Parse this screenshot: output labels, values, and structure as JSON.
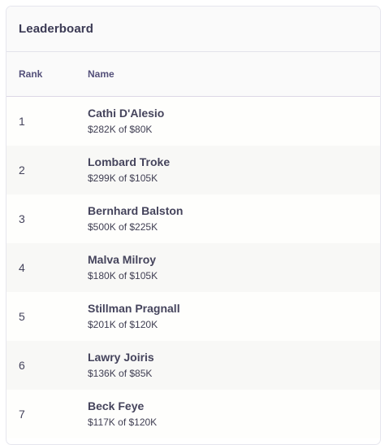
{
  "leaderboard": {
    "title": "Leaderboard",
    "columns": {
      "rank": "Rank",
      "name": "Name"
    },
    "rows": [
      {
        "rank": "1",
        "name": "Cathi D'Alesio",
        "amount": "$282K of $80K"
      },
      {
        "rank": "2",
        "name": "Lombard Troke",
        "amount": "$299K of $105K"
      },
      {
        "rank": "3",
        "name": "Bernhard Balston",
        "amount": "$500K of $225K"
      },
      {
        "rank": "4",
        "name": "Malva Milroy",
        "amount": "$180K of $105K"
      },
      {
        "rank": "5",
        "name": "Stillman Pragnall",
        "amount": "$201K of $120K"
      },
      {
        "rank": "6",
        "name": "Lawry Joiris",
        "amount": "$136K of $85K"
      },
      {
        "rank": "7",
        "name": "Beck Feye",
        "amount": "$117K of $120K"
      }
    ]
  }
}
